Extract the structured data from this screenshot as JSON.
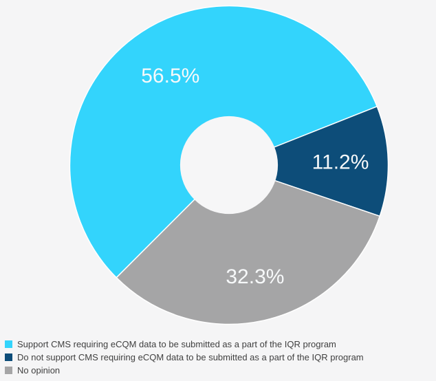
{
  "page": {
    "background": "#F5F5F6"
  },
  "chart_data": {
    "type": "pie",
    "donut": true,
    "start_angle_deg": 225,
    "direction": "clockwise",
    "hole_ratio": 0.307,
    "separator_color": "#FFFFFF",
    "slice_label_color": "#F7F9FA",
    "legend_position": "bottom-left",
    "legend_text_color": "#3F3F3F",
    "slices": [
      {
        "label": "Support CMS requiring eCQM data to be submitted as a part of the IQR program",
        "value": 56.5,
        "display": "56.5%",
        "color": "#33D4FC",
        "label_ratio": 0.67
      },
      {
        "label": "Do not support CMS requiring eCQM data to be submitted as a part of the IQR program",
        "value": 11.2,
        "display": "11.2%",
        "color": "#0D4D79",
        "label_ratio": 0.7
      },
      {
        "label": "No opinion",
        "value": 32.3,
        "display": "32.3%",
        "color": "#A5A5A6",
        "label_ratio": 0.72
      }
    ]
  }
}
